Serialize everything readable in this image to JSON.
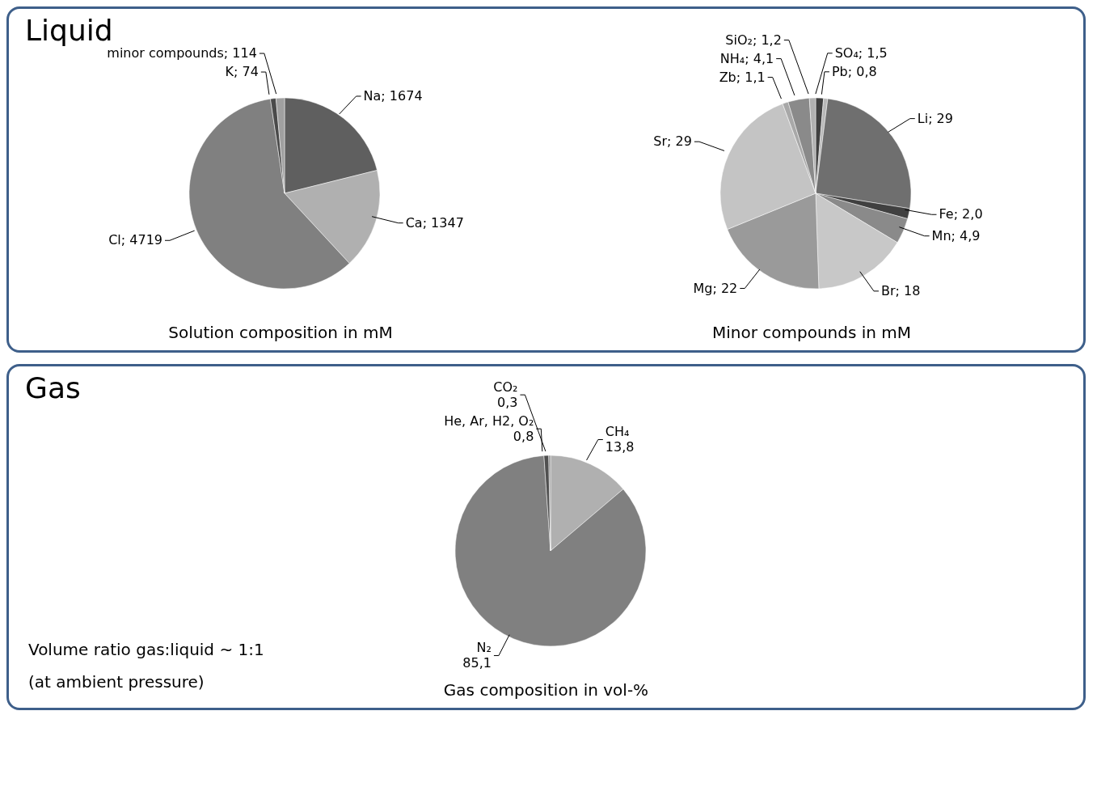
{
  "chart_data": [
    {
      "type": "pie",
      "title": "Liquid",
      "categories": [
        "Na",
        "Ca",
        "Cl",
        "K",
        "minor compounds"
      ],
      "values": [
        1674,
        1347,
        4719,
        74,
        114
      ],
      "value_labels": [
        "1674",
        "1347",
        "4719",
        "74",
        "114"
      ],
      "colors": [
        "#5f5f5f",
        "#b0b0b0",
        "#808080",
        "#4a4a4a",
        "#a0a0a0"
      ],
      "annotations": [
        "Solution composition in mM"
      ]
    },
    {
      "type": "pie",
      "categories": [
        "SO₄",
        "Pb",
        "Li",
        "Fe",
        "Mn",
        "Br",
        "Mg",
        "Sr",
        "Zb",
        "NH₄",
        "SiO₂"
      ],
      "values": [
        1.5,
        0.8,
        29,
        2.0,
        4.9,
        18,
        22,
        29,
        1.1,
        4.1,
        1.2
      ],
      "value_labels": [
        "1,5",
        "0,8",
        "29",
        "2,0",
        "4,9",
        "18",
        "22",
        "29",
        "1,1",
        "4,1",
        "1,2"
      ],
      "colors": [
        "#404040",
        "#b8b8b8",
        "#6f6f6f",
        "#404040",
        "#8a8a8a",
        "#c8c8c8",
        "#9a9a9a",
        "#c4c4c4",
        "#a8a8a8",
        "#8a8a8a",
        "#b0b0b0"
      ],
      "annotations": [
        "Minor compounds in mM"
      ]
    },
    {
      "type": "pie",
      "title": "Gas",
      "categories": [
        "CH₄",
        "N₂",
        "He, Ar, H2, O₂",
        "CO₂"
      ],
      "values": [
        13.8,
        85.1,
        0.8,
        0.3
      ],
      "value_labels": [
        "13,8",
        "85,1",
        "0,8",
        "0,3"
      ],
      "colors": [
        "#b0b0b0",
        "#808080",
        "#505050",
        "#909090"
      ],
      "annotations": [
        "Gas composition in vol-%",
        "Volume ratio gas:liquid ~ 1:1",
        "(at ambient pressure)"
      ]
    }
  ]
}
